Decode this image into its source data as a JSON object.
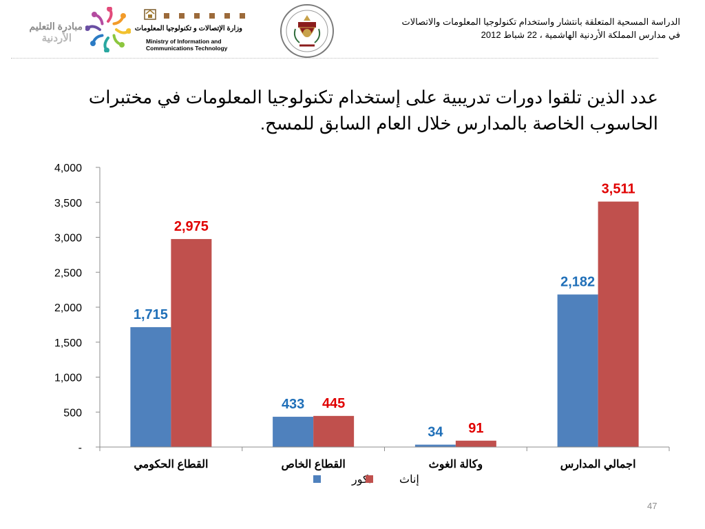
{
  "header": {
    "title_line1": "الدراسة المسحية المتعلقة بانتشار واستخدام تكنولوجيا المعلومات والاتصالات",
    "title_line2": "في مدارس المملكة الأردنية الهاشمية ، 22 شباط 2012",
    "logo_initiative_line1": "مبادرة التعليم",
    "logo_initiative_line2": "الأردنية",
    "ministry_arabic": "وزارة الإتصالات و تكنولوجيا المعلومات",
    "ministry_english_line1": "Ministry of Information and",
    "ministry_english_line2": "Communications Technology"
  },
  "slide": {
    "title": "عدد الذين تلقوا دورات تدريبية على إستخدام تكنولوجيا المعلومات في مختبرات الحاسوب الخاصة بالمدارس خلال العام السابق للمسح.",
    "page_number": "47"
  },
  "chart_data": {
    "type": "bar",
    "categories": [
      "القطاع الحكومي",
      "القطاع الخاص",
      "وكالة الغوث",
      "اجمالي المدارس"
    ],
    "series": [
      {
        "name": "ذكور",
        "values": [
          1715,
          433,
          34,
          2182
        ],
        "color": "#4f81bd",
        "label_color": "#1f6fb8"
      },
      {
        "name": "إناث",
        "values": [
          2975,
          445,
          91,
          3511
        ],
        "color": "#c0504d",
        "label_color": "#e00000"
      }
    ],
    "data_labels": [
      [
        "1,715",
        "433",
        "34",
        "2,182"
      ],
      [
        "2,975",
        "445",
        "91",
        "3,511"
      ]
    ],
    "ylim": [
      0,
      4000
    ],
    "yticks": [
      0,
      500,
      1000,
      1500,
      2000,
      2500,
      3000,
      3500,
      4000
    ],
    "ytick_labels": [
      "-",
      "500",
      "1,000",
      "1,500",
      "2,000",
      "2,500",
      "3,000",
      "3,500",
      "4,000"
    ],
    "grid": false,
    "legend_position": "bottom"
  }
}
